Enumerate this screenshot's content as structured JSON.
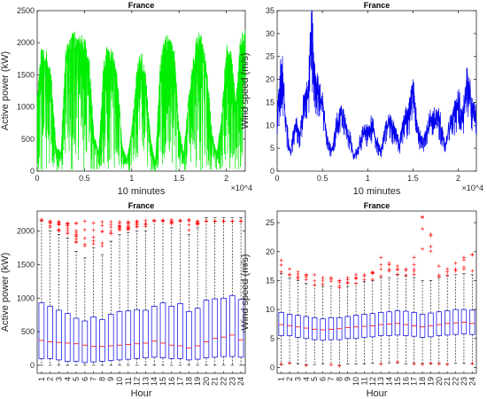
{
  "chart_data": [
    {
      "type": "line",
      "title": "France",
      "xlabel": "10 minutes",
      "ylabel": "Active power (kW)",
      "x_exponent_label": "×10^4",
      "xlim": [
        0,
        2.2
      ],
      "ylim": [
        0,
        2500
      ],
      "x_ticks": [
        "0",
        "0.5",
        "1",
        "1.5",
        "2"
      ],
      "y_ticks": [
        "0",
        "500",
        "1000",
        "1500",
        "2000",
        "2500"
      ],
      "color": "#00ee00",
      "series": [
        {
          "x": [
            0,
            0.05,
            0.1,
            0.15,
            0.2,
            0.25,
            0.3,
            0.35,
            0.4,
            0.45,
            0.5,
            0.55,
            0.6,
            0.65,
            0.7,
            0.75,
            0.8,
            0.85,
            0.9,
            0.95,
            1,
            1.05,
            1.1,
            1.15,
            1.2,
            1.25,
            1.3,
            1.35,
            1.4,
            1.45,
            1.5,
            1.55,
            1.6,
            1.65,
            1.7,
            1.75,
            1.8,
            1.85,
            1.9,
            1.95,
            2,
            2.05,
            2.1,
            2.15,
            2.2
          ],
          "y": [
            1200,
            2050,
            1900,
            1500,
            400,
            300,
            1900,
            2150,
            2200,
            2150,
            2100,
            1800,
            600,
            300,
            1700,
            2050,
            1900,
            1500,
            400,
            200,
            700,
            1600,
            1900,
            1500,
            500,
            150,
            1700,
            2150,
            2100,
            1900,
            700,
            300,
            1200,
            1800,
            2200,
            2100,
            1500,
            600,
            300,
            900,
            2000,
            1900,
            1100,
            2150,
            2200
          ]
        }
      ]
    },
    {
      "type": "line",
      "title": "France",
      "xlabel": "10 minutes",
      "ylabel": "Wind speed (m/s)",
      "x_exponent_label": "×10^4",
      "xlim": [
        0,
        2.2
      ],
      "ylim": [
        0,
        35
      ],
      "x_ticks": [
        "0",
        "0.5",
        "1",
        "1.5",
        "2"
      ],
      "y_ticks": [
        "0",
        "5",
        "10",
        "15",
        "20",
        "25",
        "30",
        "35"
      ],
      "color": "#0000ee",
      "series": [
        {
          "x": [
            0,
            0.05,
            0.1,
            0.15,
            0.2,
            0.25,
            0.3,
            0.35,
            0.38,
            0.4,
            0.45,
            0.5,
            0.55,
            0.6,
            0.65,
            0.7,
            0.75,
            0.8,
            0.85,
            0.9,
            0.95,
            1,
            1.05,
            1.1,
            1.15,
            1.2,
            1.25,
            1.3,
            1.35,
            1.4,
            1.45,
            1.5,
            1.55,
            1.6,
            1.65,
            1.7,
            1.75,
            1.8,
            1.85,
            1.9,
            1.95,
            2,
            2.05,
            2.1,
            2.15,
            2.2
          ],
          "y": [
            12,
            22,
            9,
            4,
            10,
            7,
            15,
            18,
            32,
            21,
            17,
            14,
            7,
            4,
            9,
            12,
            10,
            7,
            3,
            5,
            9,
            8,
            10,
            6,
            4,
            9,
            11,
            8,
            6,
            10,
            12,
            16,
            9,
            6,
            8,
            11,
            12,
            10,
            5,
            9,
            12,
            14,
            11,
            20,
            13,
            11
          ]
        }
      ]
    },
    {
      "type": "box",
      "title": "France",
      "xlabel": "Hour",
      "ylabel": "Active power (kW)",
      "ylim": [
        -120,
        2300
      ],
      "y_ticks": [
        "0",
        "500",
        "1000",
        "1500",
        "2000"
      ],
      "categories": [
        "1",
        "2",
        "3",
        "4",
        "5",
        "6",
        "7",
        "8",
        "9",
        "10",
        "11",
        "12",
        "13",
        "14",
        "15",
        "16",
        "17",
        "18",
        "19",
        "20",
        "21",
        "22",
        "23",
        "24"
      ],
      "box_color": "#0000ee",
      "median_color": "#ff0000",
      "outlier_color": "#ff0000",
      "q1": [
        100,
        100,
        80,
        60,
        60,
        40,
        50,
        60,
        70,
        80,
        90,
        100,
        110,
        120,
        110,
        100,
        100,
        80,
        90,
        110,
        120,
        130,
        130,
        120
      ],
      "median": [
        370,
        350,
        340,
        330,
        320,
        300,
        280,
        280,
        290,
        300,
        310,
        320,
        330,
        360,
        330,
        300,
        290,
        260,
        290,
        350,
        400,
        420,
        450,
        380
      ],
      "q3": [
        930,
        880,
        820,
        770,
        700,
        660,
        720,
        680,
        760,
        800,
        810,
        830,
        820,
        880,
        930,
        880,
        920,
        800,
        850,
        970,
        990,
        1000,
        1040,
        980
      ],
      "whisker_low": [
        0,
        0,
        0,
        0,
        0,
        0,
        0,
        0,
        0,
        0,
        0,
        0,
        0,
        0,
        0,
        0,
        0,
        0,
        0,
        0,
        0,
        0,
        0,
        0
      ],
      "whisker_high": [
        2150,
        2000,
        1950,
        1900,
        1700,
        1600,
        1750,
        1650,
        1850,
        1950,
        1980,
        2000,
        2000,
        2150,
        2150,
        2050,
        2150,
        1950,
        2050,
        2200,
        2200,
        2200,
        2200,
        2200
      ],
      "outliers_low": [
        2160,
        2050,
        2000,
        1950,
        1750,
        1650,
        1800,
        1700,
        1900,
        2000,
        2020,
        2050,
        2050,
        2150,
        2150,
        2100,
        2150,
        2000,
        2100,
        2150,
        2150,
        2150,
        2150,
        2150
      ],
      "outliers_high": [
        2170,
        2150,
        2140,
        2120,
        2120,
        2150,
        2120,
        2140,
        2140,
        2140,
        2140,
        2150,
        2160,
        2160,
        2160,
        2170,
        2160,
        2170,
        2150,
        2150,
        2150,
        2150,
        2150,
        2150
      ]
    },
    {
      "type": "box",
      "title": "France",
      "xlabel": "Hour",
      "ylabel": "Wind speed (m/s)",
      "ylim": [
        -1,
        27
      ],
      "y_ticks": [
        "0",
        "5",
        "10",
        "15",
        "20",
        "25"
      ],
      "categories": [
        "1",
        "2",
        "3",
        "4",
        "5",
        "6",
        "7",
        "8",
        "9",
        "10",
        "11",
        "12",
        "13",
        "14",
        "15",
        "16",
        "17",
        "18",
        "19",
        "20",
        "21",
        "22",
        "23",
        "24"
      ],
      "box_color": "#0000ee",
      "median_color": "#ff0000",
      "outlier_color": "#ff0000",
      "q1": [
        5.5,
        5.5,
        5.2,
        5,
        4.8,
        4.7,
        4.8,
        4.8,
        5,
        5,
        5.2,
        5.3,
        5.5,
        5.5,
        5.6,
        5.5,
        5.4,
        5.2,
        5.3,
        5.5,
        5.6,
        5.7,
        5.8,
        5.7
      ],
      "median": [
        7.4,
        7.2,
        7,
        6.8,
        6.6,
        6.5,
        6.6,
        6.7,
        6.9,
        7,
        7.1,
        7.2,
        7.4,
        7.5,
        7.6,
        7.4,
        7.2,
        7,
        7.2,
        7.4,
        7.6,
        7.7,
        7.8,
        7.6
      ],
      "q3": [
        9.5,
        9.2,
        9,
        8.8,
        8.6,
        8.4,
        8.6,
        8.6,
        8.8,
        9,
        9.2,
        9.3,
        9.5,
        9.6,
        9.8,
        9.7,
        9.5,
        9.2,
        9.4,
        9.6,
        9.8,
        10,
        10,
        9.9
      ],
      "whisker_low": [
        0.5,
        0.7,
        0.6,
        0.5,
        0.5,
        0.6,
        0.5,
        0.4,
        0.6,
        0.6,
        0.6,
        0.7,
        0.6,
        0.8,
        0.8,
        0.6,
        0.7,
        0.7,
        0.6,
        0.7,
        0.6,
        0.7,
        0.7,
        0.6
      ],
      "whisker_high": [
        16.2,
        15.5,
        15,
        14.5,
        14.2,
        14,
        14,
        13.8,
        14,
        14.5,
        14.8,
        15,
        15.5,
        15.5,
        16,
        15.8,
        15.5,
        15,
        15,
        15.5,
        15.8,
        16,
        16.2,
        16
      ],
      "outliers_top": [
        18.5,
        17,
        16.5,
        16,
        16,
        15.5,
        15.5,
        15,
        15.5,
        16,
        16,
        16.5,
        19,
        18,
        17.5,
        17,
        19,
        26,
        23,
        17.5,
        17,
        18,
        19,
        19.5
      ]
    }
  ]
}
